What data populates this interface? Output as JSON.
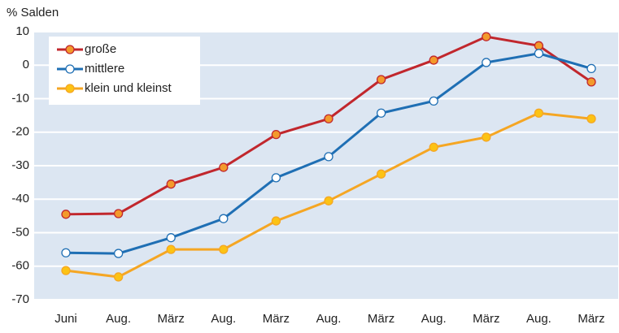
{
  "chart_data": {
    "type": "line",
    "ylabel": "% Salden",
    "categories": [
      "Juni",
      "Aug.",
      "März",
      "Aug.",
      "März",
      "Aug.",
      "März",
      "Aug.",
      "März",
      "Aug.",
      "März"
    ],
    "series": [
      {
        "name": "große",
        "color": "#c1272d",
        "marker_color": "#f39a2b",
        "values": [
          -44.5,
          -44.3,
          -35.5,
          -30.5,
          -20.7,
          -16,
          -4.3,
          1.5,
          8.5,
          5.8,
          -5
        ]
      },
      {
        "name": "mittlere",
        "color": "#1f6fb4",
        "marker_color": "#ffffff",
        "values": [
          -56,
          -56.2,
          -51.5,
          -45.8,
          -33.6,
          -27.3,
          -14.3,
          -10.7,
          0.8,
          3.5,
          -1
        ]
      },
      {
        "name": "klein und kleinst",
        "color": "#f5a623",
        "marker_color": "#fcc314",
        "values": [
          -61.3,
          -63.2,
          -55,
          -55,
          -46.5,
          -40.5,
          -32.5,
          -24.5,
          -21.5,
          -14.3,
          -16
        ]
      }
    ],
    "ylim": [
      -70,
      10
    ],
    "yticks": [
      -70,
      -60,
      -50,
      -40,
      -30,
      -20,
      -10,
      0,
      10
    ],
    "grid": true,
    "legend": "upper left"
  }
}
